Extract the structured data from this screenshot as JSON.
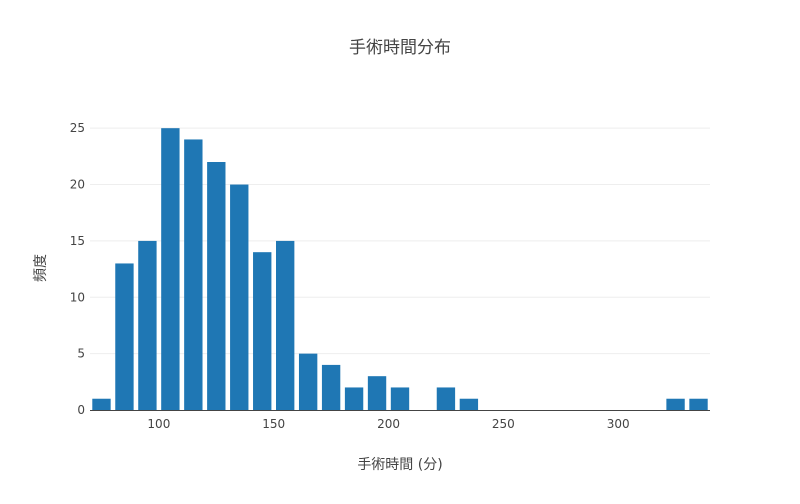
{
  "chart_data": {
    "type": "bar",
    "title": "手術時間分布",
    "xlabel": "手術時間 (分)",
    "ylabel": "頻度",
    "bin_width": 10,
    "bins": [
      {
        "x": 75,
        "count": 1
      },
      {
        "x": 85,
        "count": 13
      },
      {
        "x": 95,
        "count": 15
      },
      {
        "x": 105,
        "count": 25
      },
      {
        "x": 115,
        "count": 24
      },
      {
        "x": 125,
        "count": 22
      },
      {
        "x": 135,
        "count": 20
      },
      {
        "x": 145,
        "count": 14
      },
      {
        "x": 155,
        "count": 15
      },
      {
        "x": 165,
        "count": 5
      },
      {
        "x": 175,
        "count": 4
      },
      {
        "x": 185,
        "count": 2
      },
      {
        "x": 195,
        "count": 3
      },
      {
        "x": 205,
        "count": 2
      },
      {
        "x": 225,
        "count": 2
      },
      {
        "x": 235,
        "count": 1
      },
      {
        "x": 325,
        "count": 1
      },
      {
        "x": 335,
        "count": 1
      }
    ],
    "xlim": [
      70,
      340
    ],
    "ylim": [
      0,
      27.5
    ],
    "xticks": [
      100,
      150,
      200,
      250,
      300
    ],
    "yticks": [
      0,
      5,
      10,
      15,
      20,
      25
    ],
    "bar_color": "#1f77b4",
    "grid": true
  }
}
